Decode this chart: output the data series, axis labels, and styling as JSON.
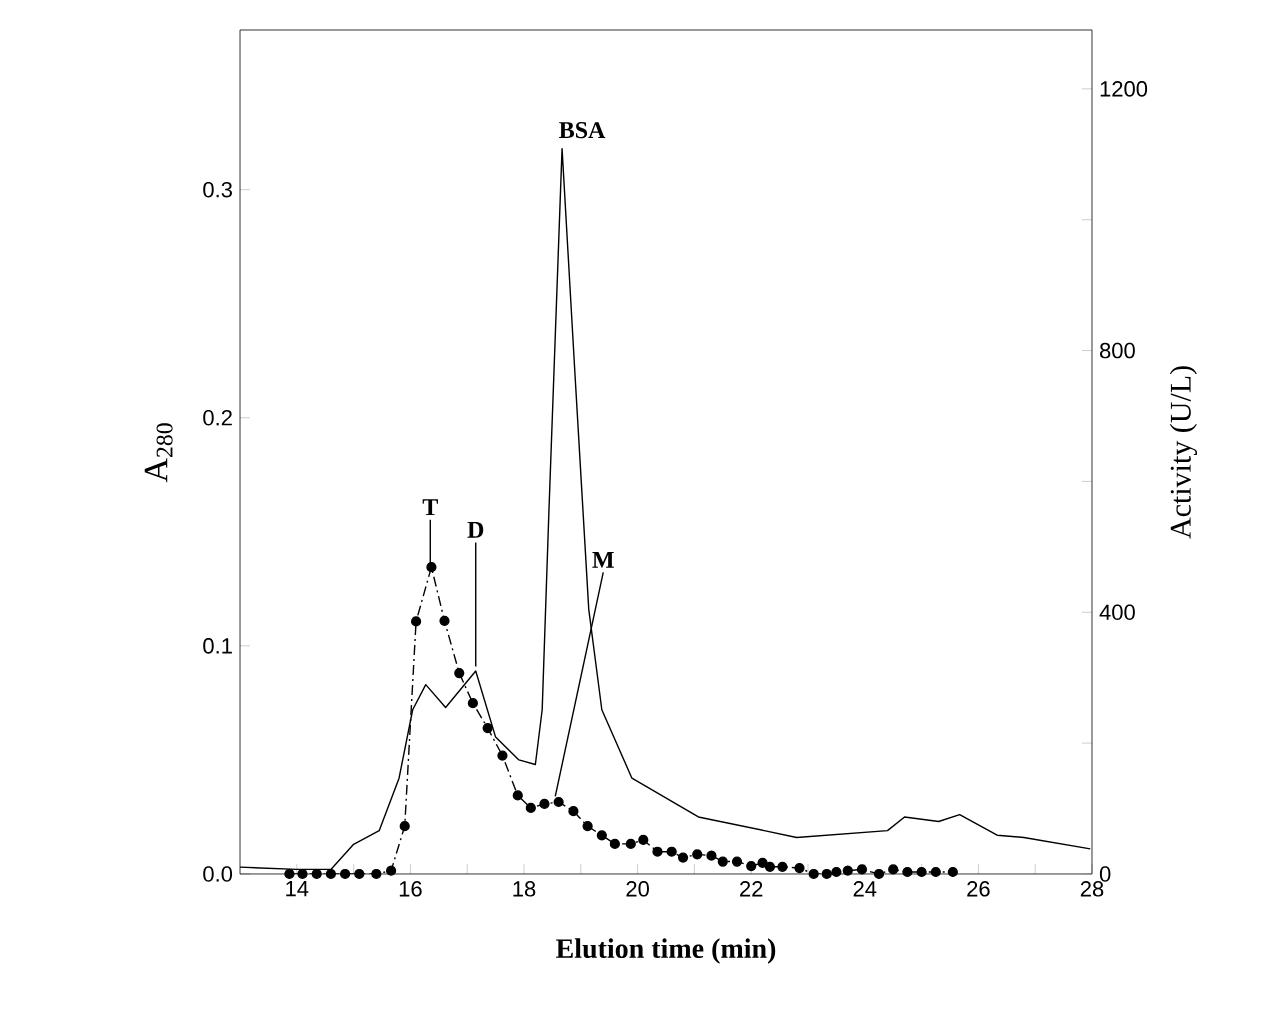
{
  "chart_data": {
    "type": "line",
    "xlabel": "Elution time (min)",
    "ylabel": "A$_{280}$",
    "y2label": "Activity (U/L)",
    "xlim": [
      13,
      28
    ],
    "xticks": [
      14,
      {
        "value": 15,
        "label": null
      },
      16,
      {
        "value": 17,
        "label": null
      },
      18,
      {
        "value": 19,
        "label": null
      },
      20,
      {
        "value": 21,
        "label": null
      },
      22,
      {
        "value": 23,
        "label": null
      },
      24,
      {
        "value": 25,
        "label": null
      },
      26,
      {
        "value": 27,
        "label": null
      },
      28
    ],
    "ylim": [
      0,
      0.37
    ],
    "yticks": [
      {
        "value": 0,
        "label": "0.0"
      },
      0.1,
      0.2,
      0.3
    ],
    "y2lim": [
      0,
      1290
    ],
    "y2ticks": [
      0,
      {
        "value": 200,
        "label": null
      },
      400,
      {
        "value": 600,
        "label": null
      },
      800,
      {
        "value": 1000,
        "label": null
      },
      1200
    ],
    "series": [
      {
        "color": "#000000",
        "marker": "none",
        "line_style": "solid",
        "x": [
          13,
          14,
          14.6,
          15.0,
          15.45,
          15.8,
          16.04,
          16.27,
          16.62,
          17.15,
          17.5,
          17.91,
          18.2,
          18.32,
          18.44,
          18.67,
          18.9,
          19.14,
          19.37,
          19.9,
          21.07,
          22.23,
          22.8,
          24.4,
          24.7,
          25.3,
          25.67,
          26.33,
          26.8,
          27.97
        ],
        "values": [
          0.003,
          0.002,
          0.002,
          0.013,
          0.019,
          0.042,
          0.072,
          0.083,
          0.073,
          0.089,
          0.06,
          0.05,
          0.048,
          0.072,
          0.16,
          0.318,
          0.218,
          0.116,
          0.072,
          0.042,
          0.025,
          0.019,
          0.016,
          0.019,
          0.025,
          0.023,
          0.026,
          0.017,
          0.016,
          0.011
        ]
      },
      {
        "axis": "y2",
        "color": "#000000",
        "marker": "circle",
        "line_style": "dashed",
        "x": [
          13.87,
          14.1,
          14.35,
          14.6,
          14.85,
          15.1,
          15.4,
          15.66,
          15.9,
          16.1,
          16.37,
          16.6,
          16.86,
          17.1,
          17.36,
          17.62,
          17.89,
          18.12,
          18.36,
          18.61,
          18.87,
          19.12,
          19.37,
          19.6,
          19.88,
          20.1,
          20.35,
          20.6,
          20.8,
          21.05,
          21.3,
          21.5,
          21.75,
          22.0,
          22.2,
          22.33,
          22.55,
          22.85,
          23.1,
          23.33,
          23.5,
          23.7,
          23.95,
          24.25,
          24.5,
          24.75,
          25.0,
          25.25,
          25.55
        ],
        "values": [
          0,
          0,
          0,
          0,
          0,
          0,
          0,
          5,
          73,
          386,
          469,
          387,
          307,
          261,
          223,
          181,
          120,
          101,
          107,
          110,
          96,
          73,
          59,
          46,
          46,
          52,
          34,
          34,
          25,
          30,
          28,
          19,
          19,
          12,
          17,
          11,
          11,
          9,
          0,
          0,
          3,
          5,
          7,
          0,
          7,
          3,
          3,
          3,
          3
        ]
      }
    ],
    "annotations": [
      {
        "text": "T",
        "x": 16.35,
        "y": 0.136
      },
      {
        "text": "D",
        "x": 17.15,
        "y": 0.091
      },
      {
        "text": "BSA",
        "x": 18.67,
        "y": 0.318
      },
      {
        "text": "M",
        "x": 18.55,
        "y": 0.034
      }
    ]
  }
}
